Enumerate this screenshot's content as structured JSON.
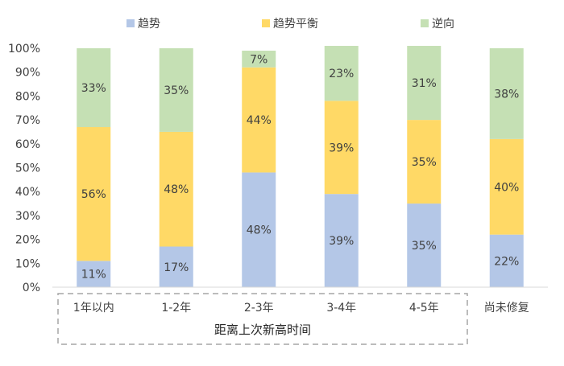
{
  "chart_data": {
    "type": "bar",
    "stacked": true,
    "percent": true,
    "categories": [
      "1年以内",
      "1-2年",
      "2-3年",
      "3-4年",
      "4-5年",
      "尚未修复"
    ],
    "series": [
      {
        "name": "趋势",
        "color": "#b4c7e7",
        "values": [
          11,
          17,
          48,
          39,
          35,
          22
        ],
        "labels": [
          "11%",
          "17%",
          "48%",
          "39%",
          "35%",
          "22%"
        ]
      },
      {
        "name": "趋势平衡",
        "color": "#ffd966",
        "values": [
          56,
          48,
          44,
          39,
          35,
          40
        ],
        "labels": [
          "56%",
          "48%",
          "44%",
          "39%",
          "35%",
          "40%"
        ]
      },
      {
        "name": "逆向",
        "color": "#c5e0b4",
        "values": [
          33,
          35,
          7,
          23,
          31,
          38
        ],
        "labels": [
          "33%",
          "35%",
          "7%",
          "23%",
          "31%",
          "38%"
        ]
      }
    ],
    "ylim": [
      0,
      100
    ],
    "yticks": [
      "0%",
      "10%",
      "20%",
      "30%",
      "40%",
      "50%",
      "60%",
      "70%",
      "80%",
      "90%",
      "100%"
    ],
    "group_label": "距离上次新高时间",
    "grouped_categories": [
      "1年以内",
      "1-2年",
      "2-3年",
      "3-4年",
      "4-5年"
    ],
    "legend_position": "top",
    "grid": false
  }
}
